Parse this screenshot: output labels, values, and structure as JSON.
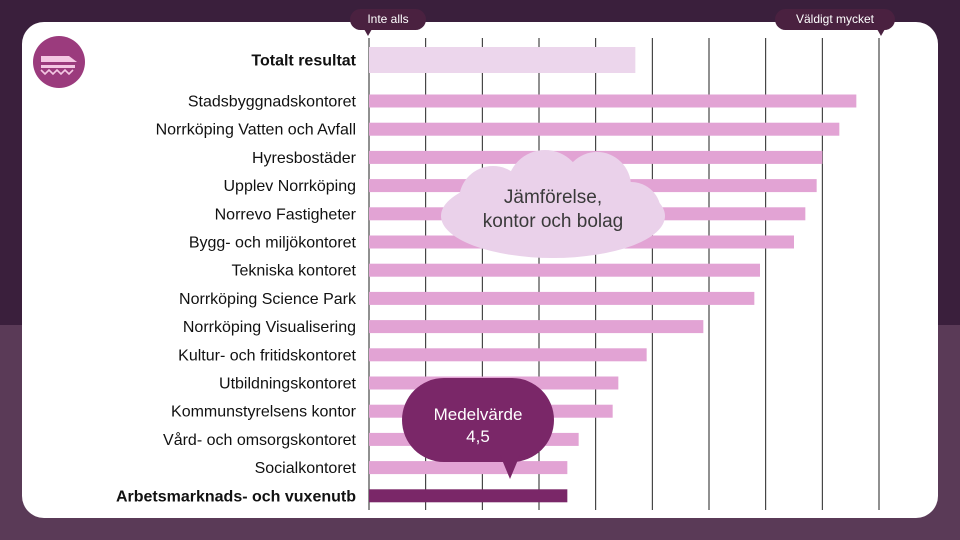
{
  "scale": {
    "low_label": "Inte alls",
    "high_label": "Väldigt mycket"
  },
  "callouts": {
    "comparison_line1": "Jämförelse,",
    "comparison_line2": "kontor och bolag",
    "average_line1": "Medelvärde",
    "average_line2": "4,5"
  },
  "colors": {
    "total": "#ecd6ec",
    "units": "#e2a3d4",
    "highlight": "#7a2768",
    "label": "#111111"
  },
  "chart_data": {
    "type": "bar",
    "orientation": "horizontal",
    "xlim": [
      1,
      10
    ],
    "grid": true,
    "categories": [
      "Totalt resultat",
      "Stadsbyggnadskontoret",
      "Norrköping Vatten och Avfall",
      "Hyresbostäder",
      "Upplev Norrköping",
      "Norrevo Fastigheter",
      "Bygg- och miljökontoret",
      "Tekniska kontoret",
      "Norrköping Science Park",
      "Norrköping Visualisering",
      "Kultur- och fritidskontoret",
      "Utbildningskontoret",
      "Kommunstyrelsens kontor",
      "Vård- och omsorgskontoret",
      "Socialkontoret",
      "Arbetsmarknads- och vuxenutb"
    ],
    "values": [
      5.7,
      9.6,
      9.3,
      9.0,
      8.9,
      8.7,
      8.5,
      7.9,
      7.8,
      6.9,
      5.9,
      5.4,
      5.3,
      4.7,
      4.5,
      4.5
    ],
    "emphasis": {
      "total_index": 0,
      "highlight_index": 15
    }
  }
}
